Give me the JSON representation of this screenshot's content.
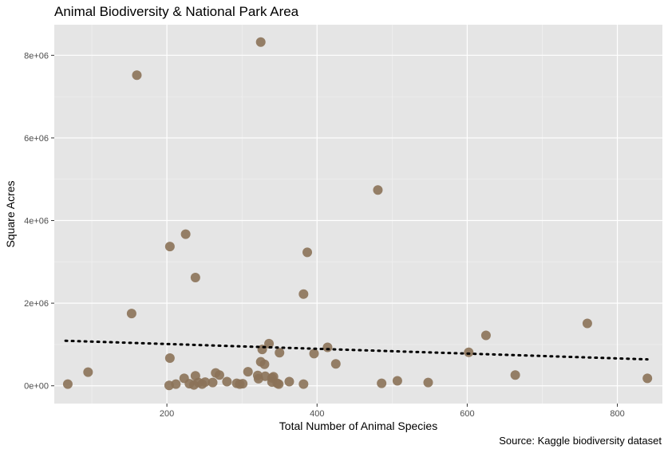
{
  "chart_data": {
    "type": "scatter",
    "title": "Animal Biodiversity & National Park Area",
    "xlabel": "Total Number of Animal Species",
    "ylabel": "Square Acres",
    "caption": "Source: Kaggle biodiversity dataset",
    "xlim": [
      50,
      860
    ],
    "ylim": [
      -430000,
      8740000
    ],
    "x_ticks": [
      200,
      400,
      600,
      800
    ],
    "x_tick_labels": [
      "200",
      "400",
      "600",
      "800"
    ],
    "y_ticks": [
      0,
      2000000,
      4000000,
      6000000,
      8000000
    ],
    "y_tick_labels": [
      "0e+00",
      "2e+06",
      "4e+06",
      "6e+06",
      "8e+06"
    ],
    "grid": true,
    "panel_background": "#e5e5e5",
    "point_color": "#8b7258",
    "trend_line": {
      "style": "dotted",
      "color": "#000000",
      "x": [
        65,
        840
      ],
      "y": [
        1090000,
        640000
      ]
    },
    "points": [
      {
        "x": 68,
        "y": 40000
      },
      {
        "x": 95,
        "y": 330000
      },
      {
        "x": 153,
        "y": 1750000
      },
      {
        "x": 160,
        "y": 7520000
      },
      {
        "x": 203,
        "y": 10000
      },
      {
        "x": 204,
        "y": 670000
      },
      {
        "x": 204,
        "y": 3370000
      },
      {
        "x": 212,
        "y": 40000
      },
      {
        "x": 223,
        "y": 180000
      },
      {
        "x": 225,
        "y": 3670000
      },
      {
        "x": 230,
        "y": 50000
      },
      {
        "x": 236,
        "y": 20000
      },
      {
        "x": 238,
        "y": 240000
      },
      {
        "x": 238,
        "y": 2620000
      },
      {
        "x": 242,
        "y": 80000
      },
      {
        "x": 247,
        "y": 40000
      },
      {
        "x": 251,
        "y": 90000
      },
      {
        "x": 261,
        "y": 80000
      },
      {
        "x": 265,
        "y": 310000
      },
      {
        "x": 270,
        "y": 260000
      },
      {
        "x": 280,
        "y": 100000
      },
      {
        "x": 293,
        "y": 60000
      },
      {
        "x": 297,
        "y": 40000
      },
      {
        "x": 301,
        "y": 50000
      },
      {
        "x": 308,
        "y": 340000
      },
      {
        "x": 321,
        "y": 250000
      },
      {
        "x": 322,
        "y": 170000
      },
      {
        "x": 325,
        "y": 8320000
      },
      {
        "x": 325,
        "y": 580000
      },
      {
        "x": 327,
        "y": 880000
      },
      {
        "x": 330,
        "y": 520000
      },
      {
        "x": 331,
        "y": 230000
      },
      {
        "x": 336,
        "y": 1020000
      },
      {
        "x": 340,
        "y": 90000
      },
      {
        "x": 340,
        "y": 190000
      },
      {
        "x": 342,
        "y": 220000
      },
      {
        "x": 347,
        "y": 60000
      },
      {
        "x": 350,
        "y": 800000
      },
      {
        "x": 349,
        "y": 40000
      },
      {
        "x": 363,
        "y": 100000
      },
      {
        "x": 382,
        "y": 40000
      },
      {
        "x": 382,
        "y": 2220000
      },
      {
        "x": 387,
        "y": 3230000
      },
      {
        "x": 396,
        "y": 780000
      },
      {
        "x": 414,
        "y": 930000
      },
      {
        "x": 425,
        "y": 530000
      },
      {
        "x": 481,
        "y": 4740000
      },
      {
        "x": 486,
        "y": 60000
      },
      {
        "x": 507,
        "y": 120000
      },
      {
        "x": 548,
        "y": 80000
      },
      {
        "x": 602,
        "y": 810000
      },
      {
        "x": 625,
        "y": 1220000
      },
      {
        "x": 664,
        "y": 260000
      },
      {
        "x": 760,
        "y": 1510000
      },
      {
        "x": 840,
        "y": 180000
      }
    ]
  }
}
